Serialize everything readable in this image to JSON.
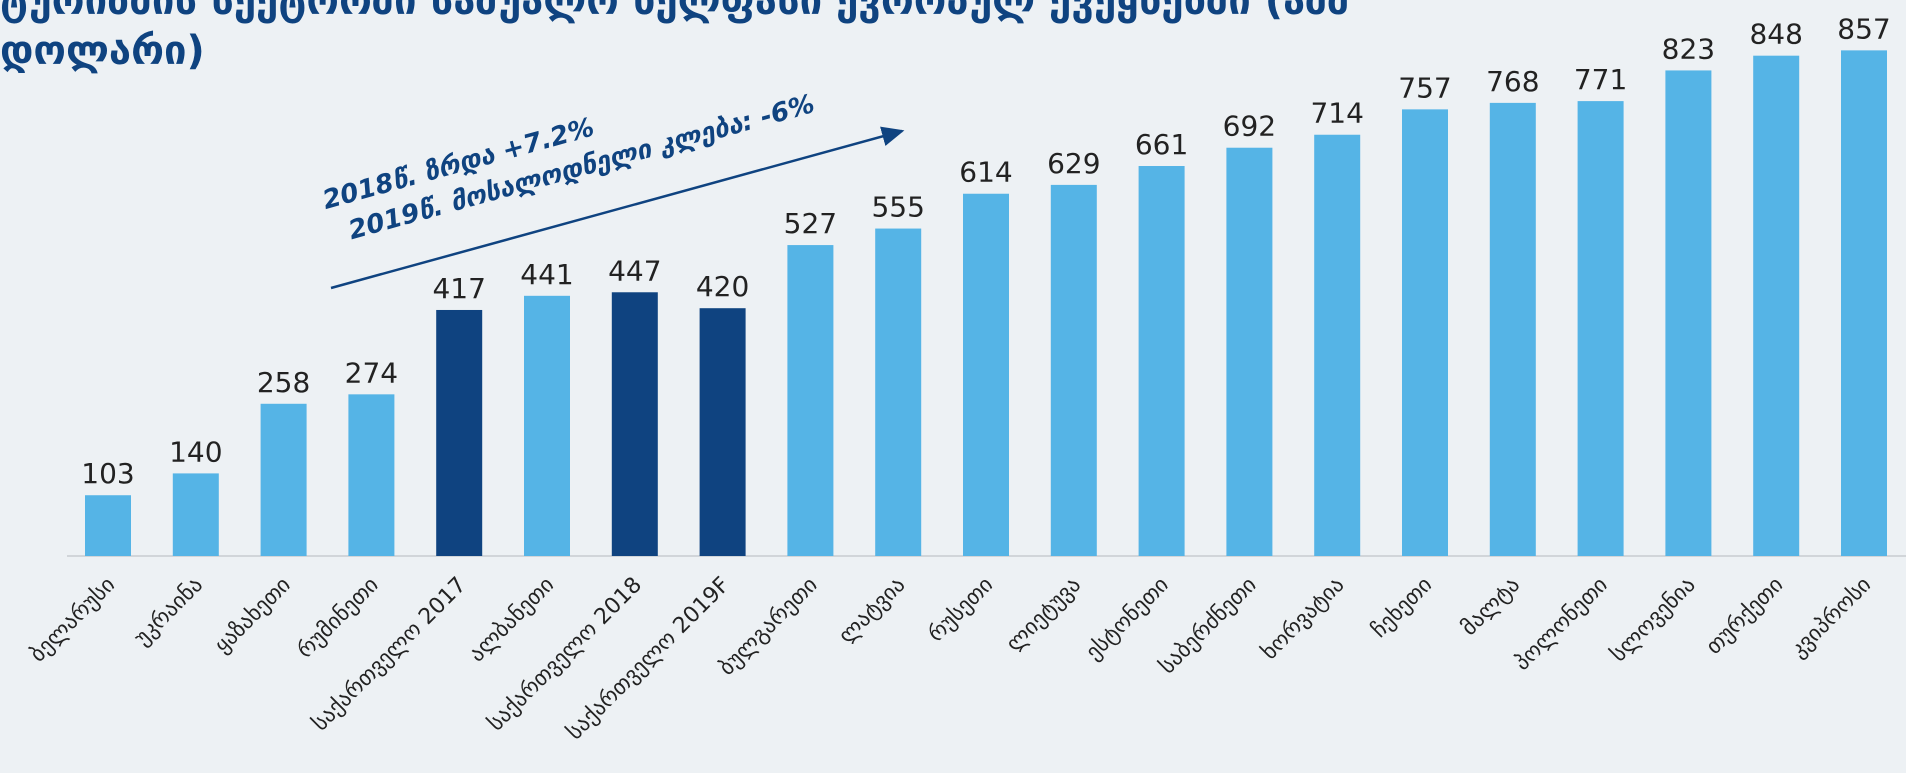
{
  "chart_data": {
    "type": "bar",
    "title": [
      "ტურიზმის სექტორში საშუალო ხელფასი ევროპულ ქვეყნებში (აშშ",
      "დოლარი)"
    ],
    "annotation": [
      "2018წ. ზრდა +7.2%",
      "2019წ. მოსალოდნელი კლება: -6%"
    ],
    "categories": [
      "ბელარუსი",
      "უკრაინა",
      "ყაზახეთი",
      "რუმინეთი",
      "საქართველო 2017",
      "ალბანეთი",
      "საქართველო 2018",
      "საქართველო 2019F",
      "ბულგარეთი",
      "ლატვია",
      "რუსეთი",
      "ლიეტუვა",
      "ესტონეთი",
      "საბერძნეთი",
      "ხორვატია",
      "ჩეხეთი",
      "მალტა",
      "პოლონეთი",
      "სლოვენია",
      "თურქეთი",
      "კვიპროსი"
    ],
    "values": [
      103,
      140,
      258,
      274,
      417,
      441,
      447,
      420,
      527,
      555,
      614,
      629,
      661,
      692,
      714,
      757,
      768,
      771,
      823,
      848,
      857
    ],
    "colors": [
      "#55b4e6",
      "#55b4e6",
      "#55b4e6",
      "#55b4e6",
      "#0f4380",
      "#55b4e6",
      "#0f4380",
      "#0f4380",
      "#55b4e6",
      "#55b4e6",
      "#55b4e6",
      "#55b4e6",
      "#55b4e6",
      "#55b4e6",
      "#55b4e6",
      "#55b4e6",
      "#55b4e6",
      "#55b4e6",
      "#55b4e6",
      "#55b4e6",
      "#55b4e6"
    ]
  }
}
